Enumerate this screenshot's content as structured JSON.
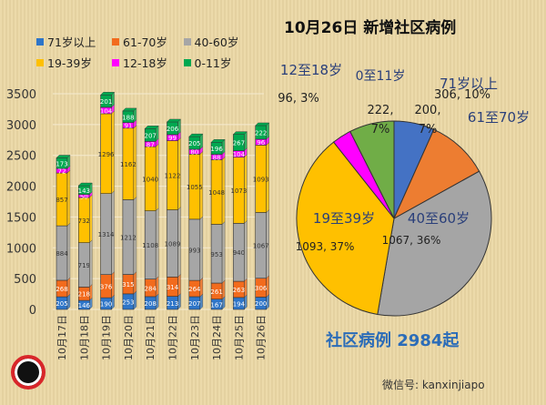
{
  "title": "10月26日 新增社区病例",
  "total_label": "社区病例 2984起",
  "watermark": "微信号: kanxinjiapo",
  "chart_data": [
    {
      "type": "bar",
      "stacked": true,
      "ylim": [
        0,
        3500
      ],
      "yticks": [
        0,
        500,
        1000,
        1500,
        2000,
        2500,
        3000,
        3500
      ],
      "grid": true,
      "legend": "top-left",
      "categories": [
        "10月17日",
        "10月18日",
        "10月19日",
        "10月20日",
        "10月21日",
        "10月22日",
        "10月23日",
        "10月24日",
        "10月25日",
        "10月26日"
      ],
      "series": [
        {
          "name": "71岁以上",
          "color": "#2e75c8",
          "values": [
            205,
            146,
            190,
            253,
            208,
            213,
            207,
            167,
            194,
            200
          ]
        },
        {
          "name": "61-70岁",
          "color": "#f26b1d",
          "values": [
            268,
            218,
            376,
            315,
            284,
            314,
            264,
            261,
            263,
            306
          ]
        },
        {
          "name": "40-60岁",
          "color": "#a6a6a6",
          "values": [
            884,
            719,
            1314,
            1212,
            1108,
            1089,
            993,
            953,
            940,
            1067
          ]
        },
        {
          "name": "19-39岁",
          "color": "#ffc000",
          "values": [
            857,
            732,
            1296,
            1162,
            1040,
            1122,
            1055,
            1048,
            1073,
            1093
          ]
        },
        {
          "name": "12-18岁",
          "color": "#ff00ff",
          "values": [
            72,
            50,
            104,
            91,
            87,
            99,
            80,
            88,
            104,
            96
          ]
        },
        {
          "name": "0-11岁",
          "color": "#00a850",
          "values": [
            173,
            143,
            201,
            188,
            207,
            206,
            205,
            196,
            267,
            222
          ]
        }
      ]
    },
    {
      "type": "pie",
      "slices": [
        {
          "label": "71岁以上",
          "value": 200,
          "text": "200,\n7%",
          "color": "#4472c4"
        },
        {
          "label": "61至70岁",
          "value": 306,
          "text": "306, 10%",
          "color": "#ed7d31"
        },
        {
          "label": "40至60岁",
          "value": 1067,
          "text": "1067, 36%",
          "color": "#a5a5a5"
        },
        {
          "label": "19至39岁",
          "value": 1093,
          "text": "1093, 37%",
          "color": "#ffc000"
        },
        {
          "label": "12至18岁",
          "value": 96,
          "text": "96, 3%",
          "color": "#ff00ff"
        },
        {
          "label": "0至11岁",
          "value": 222,
          "text": "222,\n7%",
          "color": "#70ad47"
        }
      ]
    }
  ]
}
